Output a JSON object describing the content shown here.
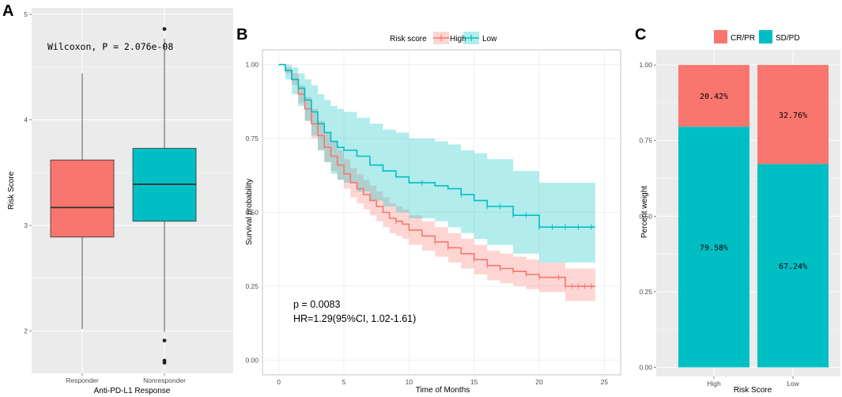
{
  "colors": {
    "red": "#F8766D",
    "teal": "#00BFC4",
    "panel_bg": "#EBEBEB",
    "grid": "#FFFFFF",
    "km_grid": "#EBEBEB",
    "red_ci": "#F8766D",
    "teal_ci": "#00BFC4"
  },
  "chart_data": [
    {
      "panel": "A",
      "type": "box",
      "title": "",
      "xlabel": "Anti-PD-L1 Response",
      "ylabel": "Risk Score",
      "categories": [
        "Responder",
        "Nonresponder"
      ],
      "ylim": [
        1.6,
        5.06
      ],
      "yticks": [
        "2",
        "3",
        "4",
        "5"
      ],
      "annotation": "Wilcoxon, P = 2.076e-08",
      "boxes": [
        {
          "name": "Responder",
          "whisker_low": 2.02,
          "q1": 2.89,
          "median": 3.17,
          "q3": 3.62,
          "whisker_high": 4.44,
          "outliers": []
        },
        {
          "name": "Nonresponder",
          "whisker_low": 1.99,
          "q1": 3.04,
          "median": 3.39,
          "q3": 3.73,
          "whisker_high": 4.77,
          "outliers": [
            4.86,
            1.91,
            1.72,
            1.7
          ]
        }
      ]
    },
    {
      "panel": "B",
      "type": "line",
      "subtype": "kaplan-meier",
      "xlabel": "Time of Months",
      "ylabel": "Survival probability",
      "legend_title": "Risk score",
      "legend_position": "top",
      "xlim": [
        -1.25,
        26.25
      ],
      "ylim": [
        -0.05,
        1.05
      ],
      "xticks": [
        "0",
        "5",
        "10",
        "15",
        "20",
        "25"
      ],
      "yticks": [
        "0.00",
        "0.25",
        "0.50",
        "0.75",
        "1.00"
      ],
      "annotations": [
        "p = 0.0083",
        "HR=1.29(95%CI, 1.02-1.61)"
      ],
      "series": [
        {
          "name": "High",
          "x": [
            0,
            0.5,
            1,
            1.5,
            2,
            2.5,
            3,
            3.5,
            4,
            4.5,
            5,
            5.5,
            6,
            6.5,
            7,
            7.5,
            8,
            8.5,
            9,
            9.5,
            10,
            11,
            12,
            13,
            14,
            15,
            16,
            17,
            18,
            19,
            20,
            21,
            22,
            23,
            24.3
          ],
          "y": [
            1.0,
            0.98,
            0.95,
            0.9,
            0.85,
            0.8,
            0.76,
            0.72,
            0.69,
            0.66,
            0.63,
            0.6,
            0.58,
            0.56,
            0.54,
            0.52,
            0.5,
            0.48,
            0.47,
            0.46,
            0.44,
            0.42,
            0.4,
            0.38,
            0.36,
            0.34,
            0.32,
            0.31,
            0.3,
            0.29,
            0.28,
            0.28,
            0.25,
            0.25,
            0.25
          ],
          "ci_upper": [
            1.0,
            0.99,
            0.97,
            0.93,
            0.89,
            0.85,
            0.81,
            0.77,
            0.74,
            0.71,
            0.68,
            0.65,
            0.63,
            0.61,
            0.59,
            0.57,
            0.55,
            0.53,
            0.52,
            0.51,
            0.49,
            0.47,
            0.45,
            0.43,
            0.41,
            0.39,
            0.37,
            0.36,
            0.35,
            0.34,
            0.33,
            0.33,
            0.31,
            0.31,
            0.31
          ],
          "ci_lower": [
            1.0,
            0.97,
            0.93,
            0.87,
            0.81,
            0.75,
            0.71,
            0.67,
            0.64,
            0.61,
            0.58,
            0.55,
            0.53,
            0.51,
            0.49,
            0.47,
            0.45,
            0.43,
            0.42,
            0.41,
            0.39,
            0.37,
            0.35,
            0.33,
            0.31,
            0.29,
            0.27,
            0.26,
            0.25,
            0.24,
            0.23,
            0.23,
            0.2,
            0.2,
            0.2
          ],
          "censor_x": [
            9,
            12,
            13,
            15,
            16,
            17,
            18,
            19,
            20,
            21.5,
            22,
            22.5,
            23,
            23.5,
            24
          ]
        },
        {
          "name": "Low",
          "x": [
            0,
            0.5,
            1,
            1.5,
            2,
            2.5,
            3,
            3.5,
            4,
            4.5,
            5,
            6,
            7,
            8,
            9,
            10,
            11,
            12,
            13,
            14,
            15,
            16,
            17,
            18,
            19,
            20,
            21,
            24.3
          ],
          "y": [
            1.0,
            0.98,
            0.95,
            0.92,
            0.88,
            0.84,
            0.8,
            0.77,
            0.74,
            0.72,
            0.71,
            0.69,
            0.66,
            0.64,
            0.62,
            0.6,
            0.6,
            0.59,
            0.58,
            0.56,
            0.54,
            0.52,
            0.52,
            0.49,
            0.49,
            0.45,
            0.45,
            0.45
          ],
          "ci_upper": [
            1.0,
            1.0,
            0.99,
            0.97,
            0.95,
            0.93,
            0.9,
            0.88,
            0.86,
            0.85,
            0.84,
            0.82,
            0.8,
            0.78,
            0.77,
            0.75,
            0.75,
            0.74,
            0.73,
            0.71,
            0.7,
            0.68,
            0.68,
            0.64,
            0.64,
            0.6,
            0.6,
            0.6
          ],
          "ci_lower": [
            1.0,
            0.95,
            0.9,
            0.86,
            0.81,
            0.76,
            0.71,
            0.67,
            0.63,
            0.61,
            0.6,
            0.57,
            0.54,
            0.52,
            0.5,
            0.48,
            0.48,
            0.47,
            0.45,
            0.43,
            0.41,
            0.39,
            0.39,
            0.36,
            0.36,
            0.33,
            0.33,
            0.33
          ],
          "censor_x": [
            11,
            14,
            16,
            17,
            18,
            19,
            20,
            21,
            22,
            23,
            24
          ]
        }
      ]
    },
    {
      "panel": "C",
      "type": "bar",
      "subtype": "stacked-percent",
      "xlabel": "Risk Score",
      "ylabel": "Percent weight",
      "legend_position": "top",
      "categories": [
        "High",
        "Low"
      ],
      "ylim": [
        -0.03,
        1.05
      ],
      "yticks": [
        "0.00",
        "0.25",
        "0.50",
        "0.75",
        "1.00"
      ],
      "series": [
        {
          "name": "CR/PR",
          "values": [
            0.2042,
            0.3276
          ],
          "labels": [
            "20.42%",
            "32.76%"
          ]
        },
        {
          "name": "SD/PD",
          "values": [
            0.7958,
            0.6724
          ],
          "labels": [
            "79.58%",
            "67.24%"
          ]
        }
      ]
    }
  ]
}
